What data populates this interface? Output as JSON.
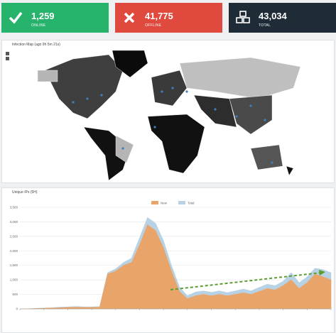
{
  "stats": [
    {
      "value": "1,259",
      "label": "ONLINE"
    },
    {
      "value": "41,775",
      "label": "OFFLINE"
    },
    {
      "value": "43,034",
      "label": "TOTAL"
    }
  ],
  "map": {
    "title": "Infection Map (ago 9h 5m 21s)"
  },
  "chart_data": {
    "type": "area",
    "title": "Unique IPs (5H)",
    "ylim": [
      0,
      3500
    ],
    "yticks": [
      0,
      500,
      {
        "value": 1000,
        "label": "1,000"
      },
      {
        "value": 1500,
        "label": "1,500"
      },
      {
        "value": 2000,
        "label": "2,000"
      },
      {
        "value": 2500,
        "label": "2,500"
      },
      {
        "value": 3000,
        "label": "3,000"
      },
      {
        "value": 3500,
        "label": "3,500"
      }
    ],
    "grid": true,
    "series": [
      {
        "name": "New",
        "color": "#e9a46a",
        "values": [
          0,
          0,
          10,
          20,
          30,
          40,
          50,
          60,
          50,
          50,
          60,
          1200,
          1300,
          1500,
          1600,
          2200,
          2900,
          2700,
          2100,
          1300,
          600,
          350,
          450,
          500,
          450,
          500,
          450,
          500,
          550,
          500,
          600,
          700,
          650,
          800,
          1000,
          700,
          900,
          1200,
          1100,
          1000
        ]
      },
      {
        "name": "Total",
        "color": "#b7d2e4",
        "values": [
          0,
          0,
          20,
          30,
          40,
          60,
          70,
          80,
          70,
          70,
          80,
          1250,
          1380,
          1600,
          1750,
          2450,
          3150,
          2950,
          2350,
          1500,
          750,
          450,
          580,
          620,
          570,
          620,
          560,
          620,
          680,
          620,
          740,
          850,
          800,
          950,
          1250,
          900,
          1100,
          1400,
          1350,
          1250
        ]
      }
    ]
  }
}
